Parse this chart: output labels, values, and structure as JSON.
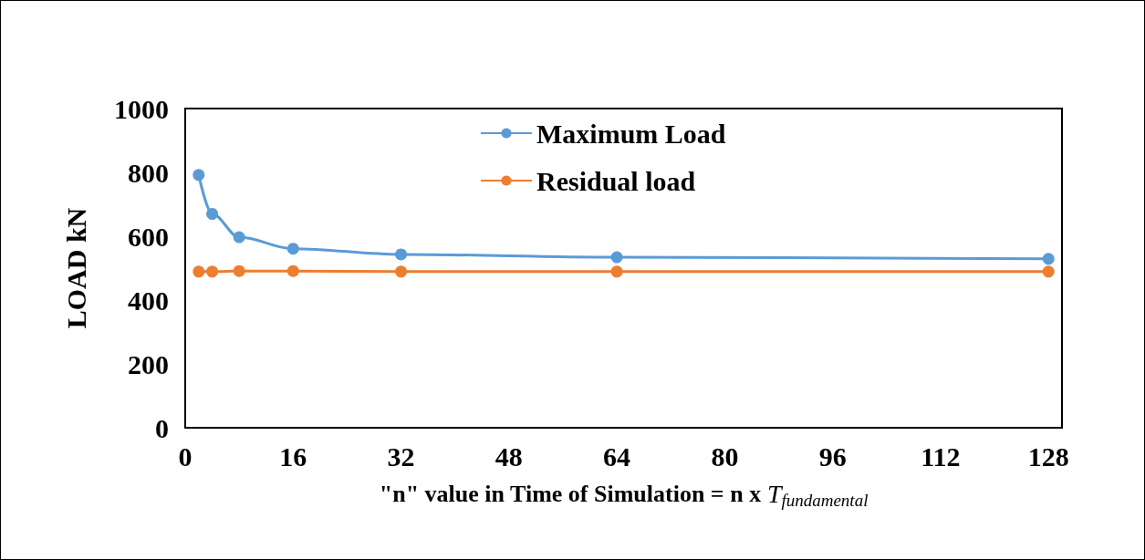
{
  "chart_data": {
    "type": "line",
    "xlabel": "\"n\" value in Time of Simulation = n x T$_{fundamental}$",
    "ylabel": "LOAD kN",
    "x": [
      2,
      4,
      8,
      16,
      32,
      64,
      128
    ],
    "series": [
      {
        "name": "Maximum Load",
        "color": "#5b9bd5",
        "values": [
          792,
          670,
          597,
          561,
          543,
          534,
          529
        ]
      },
      {
        "name": "Residual load",
        "color": "#ed7d31",
        "values": [
          489,
          489,
          491,
          491,
          489,
          489,
          489
        ]
      }
    ],
    "xlim": [
      0,
      130
    ],
    "xticks": [
      0,
      16,
      32,
      48,
      64,
      80,
      96,
      112,
      128
    ],
    "ylim": [
      0,
      1000
    ],
    "yticks": [
      0,
      200,
      400,
      600,
      800,
      1000
    ],
    "grid": false,
    "legend": "top",
    "marker": "circle",
    "line_style": "solid"
  }
}
